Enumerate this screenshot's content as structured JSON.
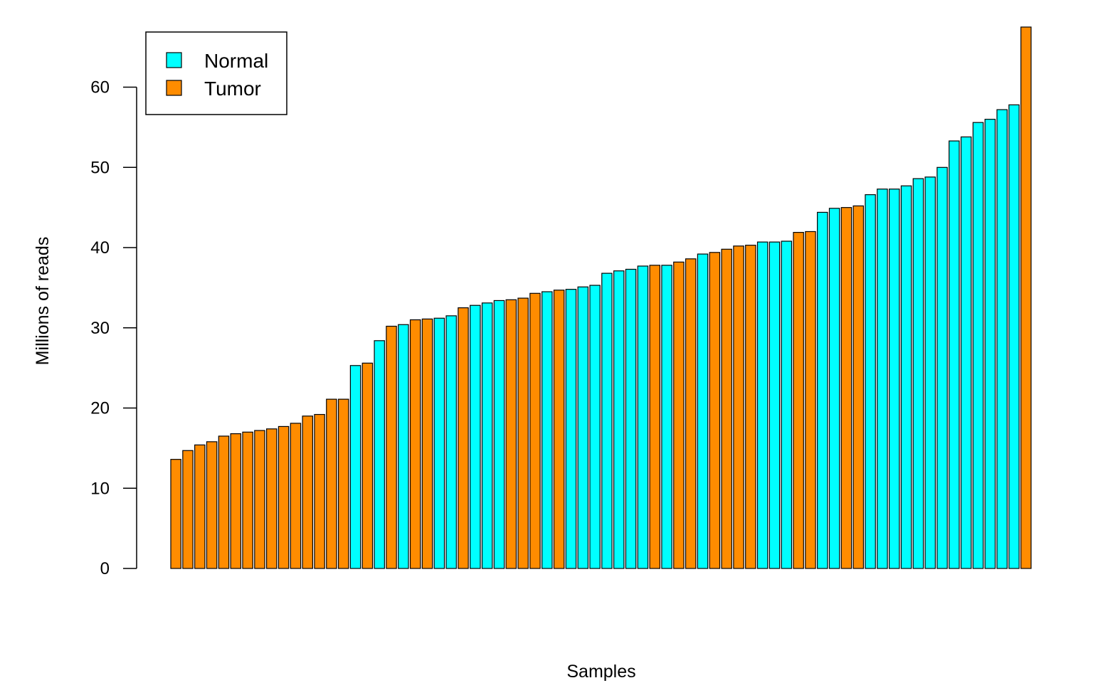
{
  "chart_data": {
    "type": "bar",
    "title": "",
    "xlabel": "Samples",
    "ylabel": "Millions of reads",
    "ylim": [
      0,
      67.5
    ],
    "yticks": [
      0,
      10,
      20,
      30,
      40,
      50,
      60
    ],
    "grid": false,
    "legend": {
      "position": "top-left",
      "entries": [
        {
          "label": "Normal",
          "group": "normal"
        },
        {
          "label": "Tumor",
          "group": "tumor"
        }
      ]
    },
    "colors": {
      "normal": "#00FFFF",
      "tumor": "#FF8C00",
      "outline": "#000000"
    },
    "values": [
      13.6,
      14.7,
      15.4,
      15.8,
      16.5,
      16.8,
      17.0,
      17.2,
      17.4,
      17.7,
      18.1,
      19.0,
      19.2,
      21.1,
      21.1,
      25.3,
      25.6,
      28.4,
      30.2,
      30.4,
      31.0,
      31.1,
      31.2,
      31.5,
      32.5,
      32.8,
      33.1,
      33.4,
      33.5,
      33.7,
      34.3,
      34.5,
      34.7,
      34.8,
      35.1,
      35.3,
      36.8,
      37.1,
      37.3,
      37.7,
      37.8,
      37.8,
      38.2,
      38.6,
      39.2,
      39.4,
      39.8,
      40.2,
      40.3,
      40.7,
      40.7,
      40.8,
      41.9,
      42.0,
      44.4,
      44.9,
      45.0,
      45.2,
      46.6,
      47.3,
      47.3,
      47.7,
      48.6,
      48.8,
      50.0,
      53.3,
      53.8,
      55.6,
      56.0,
      57.2,
      57.8,
      67.5
    ],
    "groups": [
      "tumor",
      "tumor",
      "tumor",
      "tumor",
      "tumor",
      "tumor",
      "tumor",
      "tumor",
      "tumor",
      "tumor",
      "tumor",
      "tumor",
      "tumor",
      "tumor",
      "tumor",
      "normal",
      "tumor",
      "normal",
      "tumor",
      "normal",
      "tumor",
      "tumor",
      "normal",
      "normal",
      "tumor",
      "normal",
      "normal",
      "normal",
      "tumor",
      "tumor",
      "tumor",
      "normal",
      "tumor",
      "normal",
      "normal",
      "normal",
      "normal",
      "normal",
      "normal",
      "normal",
      "tumor",
      "normal",
      "tumor",
      "tumor",
      "normal",
      "tumor",
      "tumor",
      "tumor",
      "tumor",
      "normal",
      "normal",
      "normal",
      "tumor",
      "tumor",
      "normal",
      "normal",
      "tumor",
      "tumor",
      "normal",
      "normal",
      "normal",
      "normal",
      "normal",
      "normal",
      "normal",
      "normal",
      "normal",
      "normal",
      "normal",
      "normal",
      "normal",
      "tumor"
    ]
  }
}
